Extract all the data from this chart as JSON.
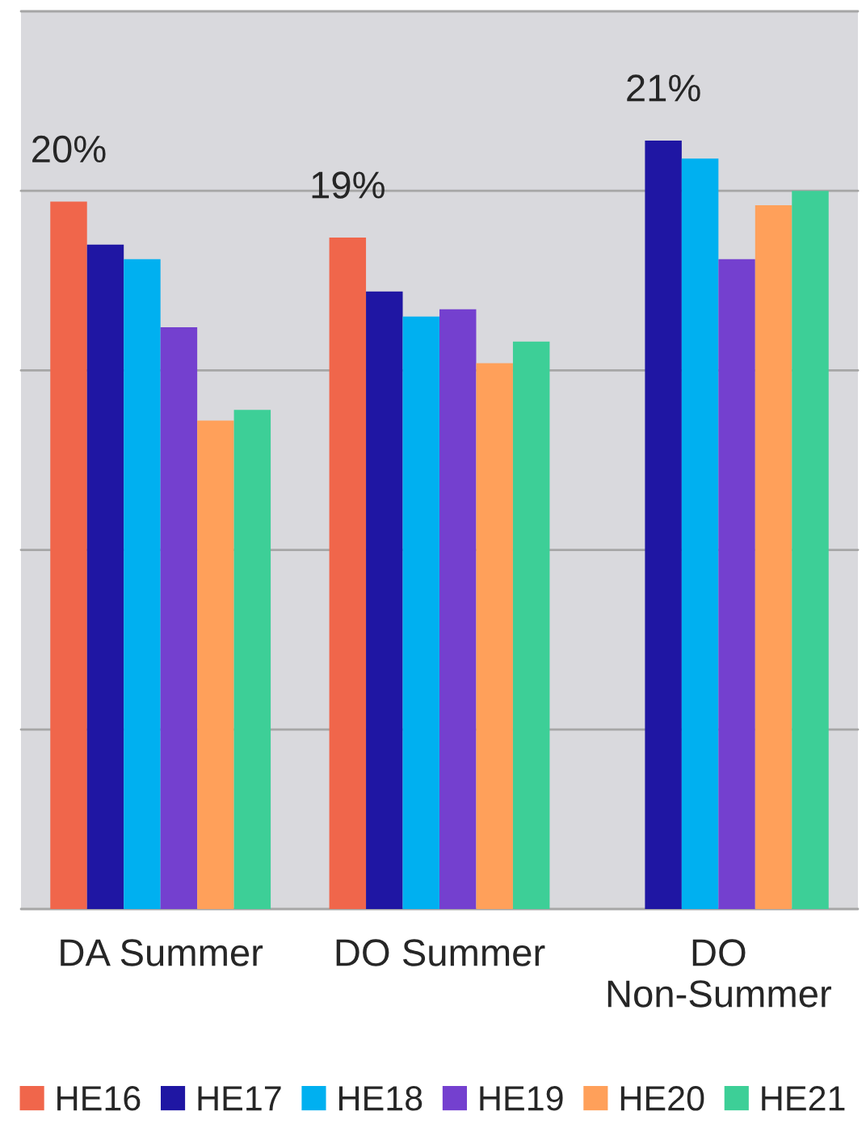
{
  "chart_data": {
    "type": "bar",
    "categories": [
      "DA Summer",
      "DO Summer",
      "DO\nNon-Summer"
    ],
    "series": [
      {
        "name": "HE16",
        "color": "#f0664b",
        "values": [
          19.7,
          18.7,
          null
        ],
        "value_labels": [
          "20%",
          "19%",
          null
        ]
      },
      {
        "name": "HE17",
        "color": "#1f16a3",
        "values": [
          18.5,
          17.2,
          21.4
        ],
        "value_labels": [
          null,
          null,
          "21%"
        ]
      },
      {
        "name": "HE18",
        "color": "#00b0f0",
        "values": [
          18.1,
          16.5,
          20.9
        ]
      },
      {
        "name": "HE19",
        "color": "#7440cf",
        "values": [
          16.2,
          16.7,
          18.1
        ]
      },
      {
        "name": "HE20",
        "color": "#ffa05a",
        "values": [
          13.6,
          15.2,
          19.6
        ]
      },
      {
        "name": "HE21",
        "color": "#3dcf97",
        "values": [
          13.9,
          15.8,
          20.0
        ]
      }
    ],
    "ylim": [
      0,
      25
    ],
    "yticks": [
      {
        "value": 0,
        "label": null
      },
      {
        "value": 5,
        "label": null
      },
      {
        "value": 10,
        "label": null
      },
      {
        "value": 15,
        "label": null
      },
      {
        "value": 20,
        "label": null
      },
      {
        "value": 25,
        "label": null
      }
    ],
    "grid": "y",
    "legend": "bottom",
    "tick_labels": "x"
  }
}
